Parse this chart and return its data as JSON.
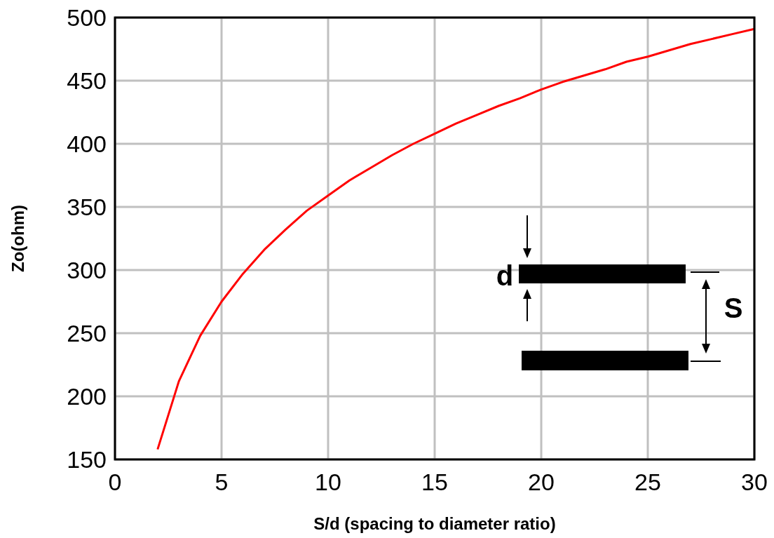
{
  "chart_data": {
    "type": "line",
    "xlabel": "S/d  (spacing to diameter ratio)",
    "ylabel": "Zo(ohm)",
    "x": [
      2,
      3,
      4,
      5,
      6,
      7,
      8,
      9,
      10,
      11,
      12,
      13,
      14,
      15,
      16,
      17,
      18,
      19,
      20,
      21,
      22,
      23,
      24,
      25,
      26,
      27,
      28,
      29,
      30
    ],
    "series": [
      {
        "color": "#ff0000",
        "values": [
          158,
          212,
          248,
          275,
          297,
          316,
          332,
          347,
          359,
          371,
          381,
          391,
          400,
          408,
          416,
          423,
          430,
          436,
          443,
          449,
          454,
          459,
          465,
          469,
          474,
          479,
          483,
          487,
          491
        ]
      }
    ],
    "xlim": [
      0,
      30
    ],
    "xticks": [
      0,
      5,
      10,
      15,
      20,
      25,
      30
    ],
    "ylim": [
      150,
      500
    ],
    "yticks": [
      150,
      200,
      250,
      300,
      350,
      400,
      450,
      500
    ],
    "grid": true,
    "marker": "none",
    "line_style": "solid",
    "annotations": [
      "d",
      "S"
    ]
  }
}
